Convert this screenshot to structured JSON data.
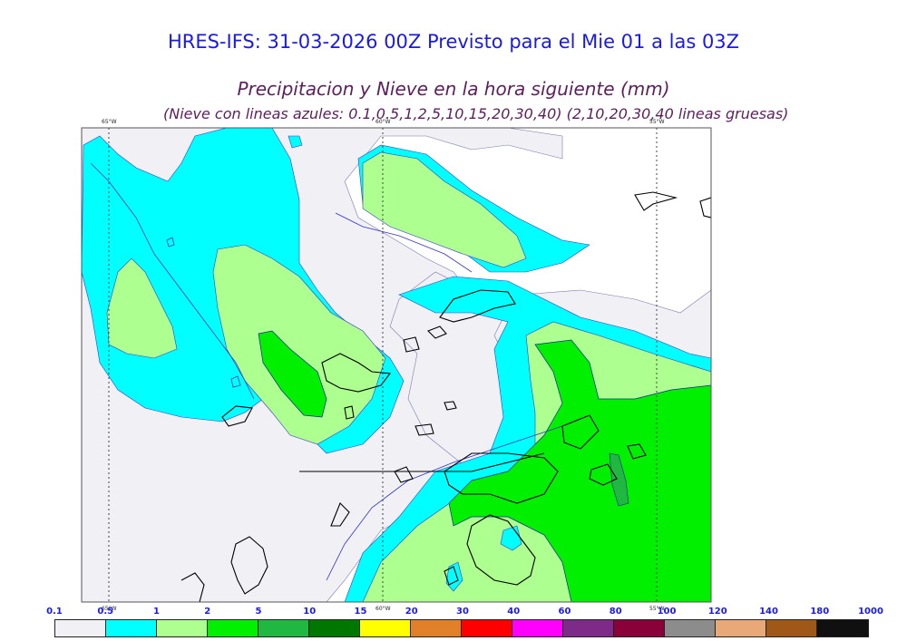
{
  "title": "HRES-IFS: 31-03-2026 00Z Previsto para el Mie 01 a las 03Z",
  "subtitle": "Precipitacion y Nieve en la hora siguiente (mm)",
  "subtitle_note": "(Nieve con lineas azules: 0.1,0.5,1,2,5,10,15,20,30,40)  (2,10,20,30,40 lineas gruesas)",
  "longitude_labels": {
    "top_left": "65°W",
    "top_mid": "60°W",
    "top_right": "55°W",
    "bottom_left": "65°W",
    "bottom_mid": "60°W",
    "bottom_right": "55°W"
  },
  "legend": {
    "thresholds": [
      "0.1",
      "0.5",
      "1",
      "2",
      "5",
      "10",
      "15",
      "20",
      "30",
      "40",
      "60",
      "80",
      "100",
      "120",
      "140",
      "180",
      "1000"
    ],
    "colors": [
      "#f0f0f5",
      "#00ffff",
      "#adff8f",
      "#00f000",
      "#20b840",
      "#007800",
      "#ffff00",
      "#e08028",
      "#ff0000",
      "#ff00ff",
      "#7d2a88",
      "#8a0038",
      "#8c8c8c",
      "#e8a878",
      "#a05818",
      "#101010"
    ]
  },
  "palette": {
    "title": "#1a1ae6",
    "subtitle": "#5c1f5c",
    "coast": "#000000",
    "snow_contour": "#3333cc"
  }
}
